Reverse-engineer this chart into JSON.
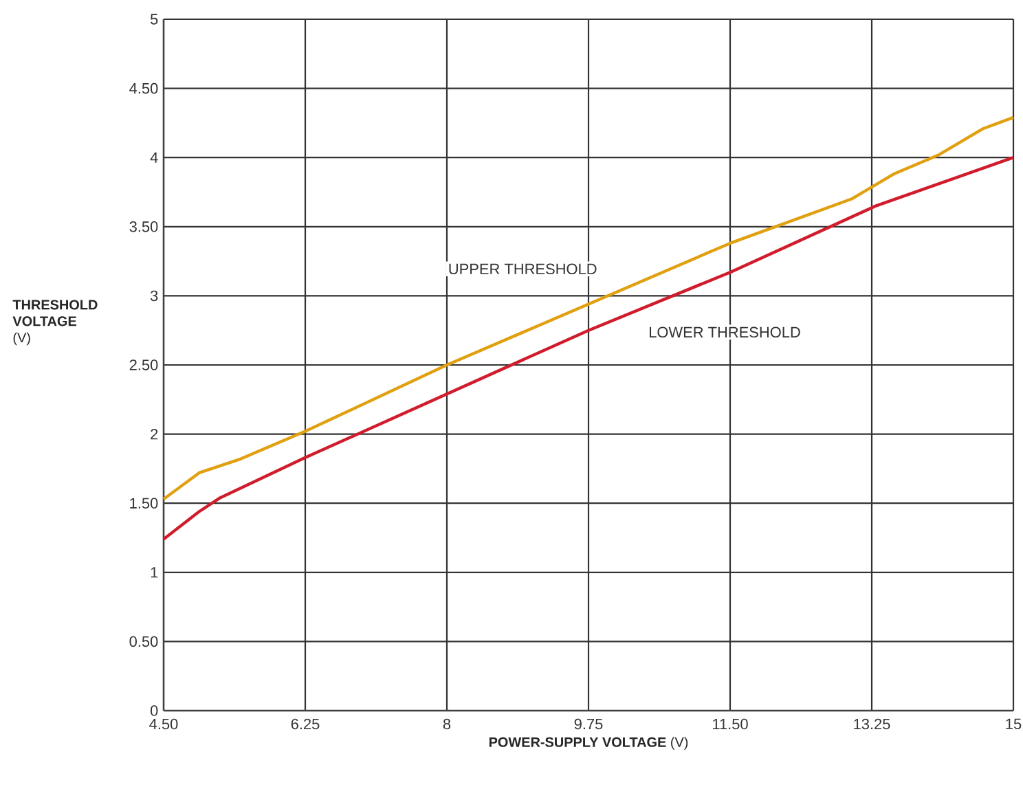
{
  "chart_data": {
    "type": "line",
    "xlabel": "**POWER-SUPPLY VOLTAGE** (V)",
    "ylabel": "**THRESHOLD VOLTAGE** (V)",
    "xlim": [
      4.5,
      15
    ],
    "ylim": [
      0,
      5
    ],
    "xticks": [
      {
        "value": 4.5,
        "label": "4.50"
      },
      6.25,
      8,
      9.75,
      {
        "value": 11.5,
        "label": "11.50"
      },
      13.25,
      15
    ],
    "yticks": [
      0,
      {
        "value": 0.5,
        "label": "0.50"
      },
      1,
      {
        "value": 1.5,
        "label": "1.50"
      },
      2,
      {
        "value": 2.5,
        "label": "2.50"
      },
      3,
      {
        "value": 3.5,
        "label": "3.50"
      },
      4,
      {
        "value": 4.5,
        "label": "4.50"
      },
      5
    ],
    "grid": true,
    "legend": false,
    "marker": "none",
    "line_style": "solid",
    "series": [
      {
        "name": "UPPER THRESHOLD",
        "color": "#e0a010",
        "x": [
          4.5,
          4.94,
          5.45,
          6.25,
          8.0,
          9.75,
          11.5,
          13.0,
          13.52,
          14.08,
          14.63,
          15
        ],
        "values": [
          1.53,
          1.72,
          1.82,
          2.02,
          2.5,
          2.94,
          3.38,
          3.7,
          3.88,
          4.02,
          4.21,
          4.29
        ]
      },
      {
        "name": "LOWER THRESHOLD",
        "color": "#d01c2c",
        "x": [
          4.5,
          4.94,
          5.2,
          6.25,
          8.0,
          9.75,
          11.5,
          13.3,
          15
        ],
        "values": [
          1.24,
          1.44,
          1.54,
          1.83,
          2.29,
          2.75,
          3.17,
          3.65,
          4.0
        ]
      }
    ]
  }
}
